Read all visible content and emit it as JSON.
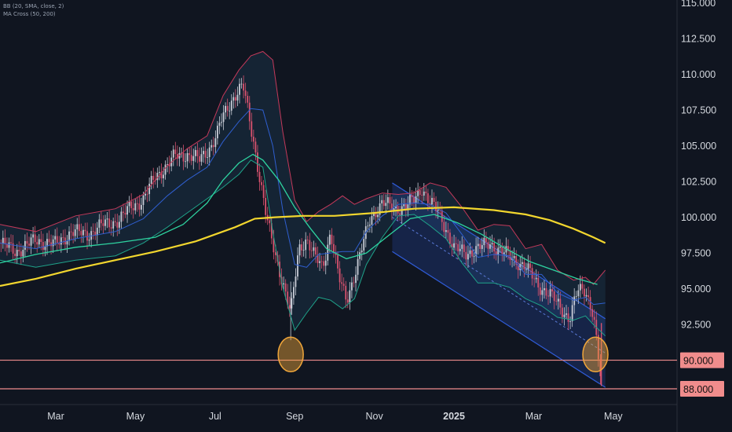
{
  "legend": {
    "line1": "BB (20, SMA, close, 2)",
    "line2": "MA Cross (50, 200)"
  },
  "colors": {
    "background": "#101520",
    "candle_up": "#c8ccd6",
    "candle_down": "#d9526e",
    "bb_upper": "#c4395a",
    "bb_lower": "#1fa38a",
    "bb_basis": "#2f5fd0",
    "ma50": "#2ed3a0",
    "ma200": "#f2d62e",
    "channel": "#2f5bd6",
    "support": "#f08c8c",
    "highlight": "#f0a63a"
  },
  "chart_data": {
    "type": "line",
    "title": "",
    "xlabel": "",
    "ylabel": "",
    "x_ticks": [
      "Mar",
      "May",
      "Jul",
      "Sep",
      "Nov",
      "2025",
      "Mar",
      "May"
    ],
    "x_tick_pos_month": [
      2,
      4,
      6,
      8,
      10,
      12,
      14,
      16
    ],
    "x_range_months": [
      0.6,
      17.6
    ],
    "y_ticks": [
      "115.000",
      "112.500",
      "110.000",
      "107.500",
      "105.000",
      "102.500",
      "100.000",
      "97.500",
      "95.000",
      "92.500"
    ],
    "y_tick_values": [
      115,
      112.5,
      110,
      107.5,
      105,
      102.5,
      100,
      97.5,
      95,
      92.5
    ],
    "ylim": [
      86.9,
      115.2
    ],
    "price_series": {
      "name": "",
      "x": [
        0.6,
        1.0,
        1.5,
        2.0,
        2.4,
        2.8,
        3.2,
        3.6,
        3.9,
        4.2,
        4.5,
        4.8,
        5.0,
        5.3,
        5.6,
        5.9,
        6.05,
        6.15,
        6.3,
        6.5,
        6.7,
        6.85,
        7.0,
        7.15,
        7.3,
        7.5,
        7.7,
        7.9,
        8.1,
        8.3,
        8.5,
        8.7,
        8.9,
        9.1,
        9.3,
        9.6,
        9.9,
        10.2,
        10.5,
        10.8,
        11.0,
        11.2,
        11.4,
        11.6,
        11.8,
        12.0,
        12.3,
        12.6,
        12.9,
        13.2,
        13.5,
        13.8,
        14.1,
        14.4,
        14.7,
        14.9,
        15.1,
        15.3,
        15.5,
        15.7
      ],
      "y": [
        98.2,
        97.6,
        98.4,
        98.1,
        99.0,
        98.8,
        99.5,
        99.8,
        100.8,
        101.2,
        102.9,
        103.6,
        104.3,
        104.4,
        104.0,
        105.0,
        105.8,
        106.7,
        107.6,
        108.6,
        109.2,
        107.0,
        104.8,
        102.3,
        99.8,
        97.5,
        95.5,
        93.2,
        97.8,
        98.5,
        97.2,
        96.5,
        99.0,
        95.8,
        94.2,
        96.9,
        100.0,
        101.0,
        100.6,
        100.8,
        101.2,
        102.1,
        101.0,
        100.4,
        99.2,
        97.8,
        97.5,
        97.8,
        98.2,
        97.6,
        97.1,
        96.5,
        95.3,
        94.6,
        93.6,
        92.9,
        94.8,
        94.9,
        93.3,
        88.2
      ]
    },
    "ma50": {
      "name": "",
      "x": [
        0.6,
        1.5,
        2.5,
        3.5,
        4.5,
        5.2,
        5.8,
        6.2,
        6.6,
        6.95,
        7.2,
        7.6,
        8.0,
        8.4,
        8.8,
        9.3,
        9.8,
        10.3,
        10.9,
        11.5,
        12.1,
        12.7,
        13.3,
        13.9,
        14.5,
        15.1,
        15.6
      ],
      "y": [
        96.8,
        97.4,
        97.9,
        98.2,
        98.6,
        99.5,
        101.0,
        102.6,
        103.8,
        104.4,
        104.0,
        102.6,
        100.7,
        99.2,
        97.8,
        97.1,
        97.5,
        98.6,
        99.9,
        100.2,
        99.6,
        98.8,
        97.8,
        96.9,
        96.3,
        95.7,
        95.3
      ]
    },
    "ma200": {
      "name": "",
      "x": [
        0.6,
        1.5,
        2.5,
        3.5,
        4.5,
        5.5,
        6.5,
        7.0,
        7.5,
        8.2,
        9.0,
        10.0,
        11.0,
        12.0,
        13.0,
        13.8,
        14.4,
        15.0,
        15.5,
        15.8
      ],
      "y": [
        95.2,
        95.7,
        96.4,
        97.0,
        97.6,
        98.3,
        99.3,
        99.9,
        100.0,
        100.1,
        100.1,
        100.3,
        100.6,
        100.7,
        100.5,
        100.2,
        99.8,
        99.2,
        98.6,
        98.2
      ]
    },
    "bb_upper": {
      "name": "",
      "x": [
        0.6,
        1.5,
        2.5,
        3.5,
        4.2,
        4.8,
        5.3,
        5.8,
        6.2,
        6.6,
        6.9,
        7.2,
        7.45,
        7.7,
        8.0,
        8.3,
        8.6,
        8.9,
        9.2,
        9.5,
        9.8,
        10.2,
        10.6,
        11.0,
        11.4,
        11.8,
        12.2,
        12.6,
        13.0,
        13.4,
        13.8,
        14.2,
        14.6,
        15.0,
        15.3,
        15.5,
        15.8
      ],
      "y": [
        99.5,
        99.0,
        100.1,
        100.6,
        101.6,
        103.6,
        104.8,
        105.7,
        108.5,
        110.3,
        111.3,
        111.6,
        111.0,
        106.0,
        101.2,
        99.7,
        100.4,
        100.9,
        101.5,
        100.9,
        101.3,
        101.7,
        101.6,
        101.7,
        102.4,
        102.1,
        100.7,
        99.1,
        99.5,
        99.4,
        97.8,
        98.1,
        96.3,
        95.6,
        95.8,
        95.3,
        96.3
      ]
    },
    "bb_lower": {
      "name": "",
      "x": [
        0.6,
        1.5,
        2.5,
        3.5,
        4.2,
        4.8,
        5.3,
        5.8,
        6.2,
        6.6,
        6.9,
        7.2,
        7.45,
        7.7,
        8.0,
        8.3,
        8.6,
        8.9,
        9.2,
        9.5,
        9.8,
        10.2,
        10.6,
        11.0,
        11.4,
        11.8,
        12.2,
        12.6,
        13.0,
        13.4,
        13.8,
        14.2,
        14.6,
        15.0,
        15.3,
        15.5,
        15.8
      ],
      "y": [
        97.0,
        96.5,
        97.0,
        97.3,
        98.2,
        99.3,
        100.3,
        101.3,
        102.1,
        103.0,
        104.0,
        103.5,
        99.0,
        95.1,
        92.1,
        93.3,
        94.4,
        94.2,
        93.6,
        94.3,
        96.7,
        98.6,
        100.1,
        100.2,
        99.4,
        98.5,
        96.8,
        95.4,
        95.4,
        95.1,
        94.3,
        93.8,
        93.0,
        92.8,
        93.1,
        92.5,
        91.7
      ]
    },
    "bb_basis": {
      "name": "",
      "x": [
        0.6,
        1.5,
        2.5,
        3.5,
        4.2,
        4.8,
        5.3,
        5.8,
        6.2,
        6.6,
        6.9,
        7.2,
        7.45,
        7.7,
        8.0,
        8.3,
        8.6,
        8.9,
        9.2,
        9.5,
        9.8,
        10.2,
        10.6,
        11.0,
        11.4,
        11.8,
        12.2,
        12.6,
        13.0,
        13.4,
        13.8,
        14.2,
        14.6,
        15.0,
        15.3,
        15.5,
        15.8
      ],
      "y": [
        98.2,
        97.8,
        98.5,
        99.0,
        99.9,
        101.5,
        102.6,
        103.5,
        105.3,
        106.7,
        107.6,
        107.5,
        105.0,
        100.5,
        96.7,
        96.5,
        97.4,
        97.5,
        97.6,
        97.6,
        99.0,
        100.1,
        100.9,
        101.0,
        100.9,
        100.3,
        98.8,
        97.2,
        97.4,
        97.3,
        96.0,
        96.0,
        94.7,
        94.2,
        94.4,
        93.9,
        94.0
      ]
    },
    "channel": {
      "upper": [
        [
          10.45,
          102.4
        ],
        [
          15.8,
          92.9
        ]
      ],
      "lower": [
        [
          10.45,
          97.6
        ],
        [
          15.8,
          88.1
        ]
      ],
      "mid": [
        [
          10.45,
          100.0
        ],
        [
          15.8,
          90.5
        ]
      ]
    },
    "support_levels": [
      {
        "value": 90.0,
        "label": "90.000"
      },
      {
        "value": 88.0,
        "label": "88.000"
      }
    ],
    "highlights": [
      {
        "x": 7.9,
        "y": 90.4
      },
      {
        "x": 15.55,
        "y": 90.4
      }
    ],
    "last_value": 88.2
  }
}
